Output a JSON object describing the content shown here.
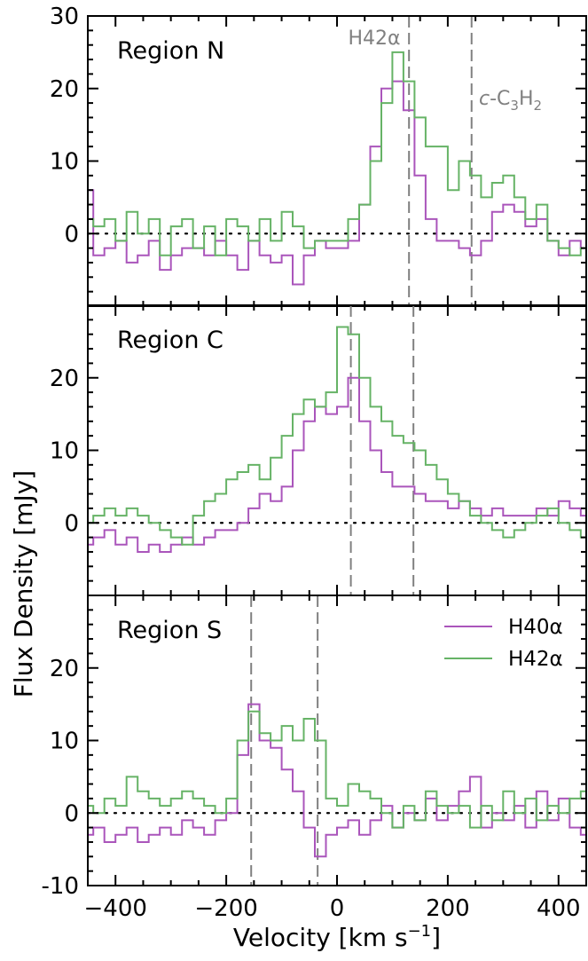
{
  "chart_data": {
    "type": "line",
    "drawstyle": "steps-mid",
    "xlabel_main": "Velocity [km s",
    "xlabel_sup": "−1",
    "xlabel_end": "]",
    "ylabel": "Flux Density [mJy]",
    "xlim": [
      -450,
      450
    ],
    "xticks": [
      -400,
      -200,
      0,
      200,
      400
    ],
    "xtick_labels": [
      "−400",
      "−200",
      "0",
      "200",
      "400"
    ],
    "colors": {
      "H40": "#aa55bb",
      "H42": "#66b366",
      "vline": "#808080"
    },
    "legend": {
      "placement": "upper-right",
      "panel": 2,
      "entries": [
        "H40α",
        "H42α"
      ]
    },
    "annotations": {
      "h42_label": "H42α",
      "c3h2_prefix": "c",
      "c3h2_rest": "-C",
      "c3h2_sub1": "3",
      "c3h2_mid": "H",
      "c3h2_sub2": "2"
    },
    "panels": [
      {
        "label": "Region N",
        "ylim": [
          -10,
          30
        ],
        "yticks": [
          0,
          10,
          20,
          30
        ],
        "ytick_labels": [
          "0",
          "10",
          "20",
          "30"
        ],
        "vlines": [
          130,
          243
        ],
        "series": [
          {
            "name": "H40α",
            "x": [
              -450,
              -430,
              -410,
              -390,
              -370,
              -350,
              -330,
              -310,
              -290,
              -270,
              -250,
              -230,
              -210,
              -190,
              -170,
              -150,
              -130,
              -110,
              -90,
              -70,
              -50,
              -30,
              -10,
              10,
              30,
              50,
              70,
              90,
              110,
              130,
              150,
              170,
              190,
              210,
              230,
              250,
              270,
              290,
              310,
              330,
              350,
              370,
              390,
              410,
              430,
              450
            ],
            "y": [
              6,
              -3,
              -2,
              -1,
              -4,
              -3,
              -1,
              -5,
              -3,
              -2,
              -2,
              -3,
              -1,
              -3,
              -5,
              -1,
              -3,
              -4,
              -3,
              -7,
              -3,
              -1,
              -2,
              -2,
              -1,
              4,
              12,
              20,
              21,
              17,
              8,
              2,
              -1,
              -1,
              -2,
              -3,
              -1,
              3,
              4,
              3,
              1,
              2,
              -1,
              -3,
              -1,
              -2
            ]
          },
          {
            "name": "H42α",
            "x": [
              -450,
              -430,
              -410,
              -390,
              -370,
              -350,
              -330,
              -310,
              -290,
              -270,
              -250,
              -230,
              -210,
              -190,
              -170,
              -150,
              -130,
              -110,
              -90,
              -70,
              -50,
              -30,
              -10,
              10,
              30,
              50,
              70,
              90,
              110,
              130,
              150,
              170,
              190,
              210,
              230,
              250,
              270,
              290,
              310,
              330,
              350,
              370,
              390,
              410,
              430,
              450
            ],
            "y": [
              2,
              1,
              2,
              -1,
              3,
              0,
              2,
              -3,
              1,
              2,
              -2,
              1,
              -3,
              2,
              1,
              -1,
              2,
              -1,
              3,
              1,
              -2,
              -1,
              -1,
              -1,
              2,
              4,
              10,
              18,
              25,
              21,
              16,
              12,
              12,
              6,
              10,
              8,
              5,
              7,
              8,
              5,
              2,
              4,
              -1,
              -2,
              -3,
              -2
            ]
          }
        ]
      },
      {
        "label": "Region C",
        "ylim": [
          -10,
          30
        ],
        "yticks": [
          0,
          10,
          20
        ],
        "ytick_labels": [
          "0",
          "10",
          "20"
        ],
        "vlines": [
          25,
          138
        ],
        "series": [
          {
            "name": "H40α",
            "x": [
              -450,
              -430,
              -410,
              -390,
              -370,
              -350,
              -330,
              -310,
              -290,
              -270,
              -250,
              -230,
              -210,
              -190,
              -170,
              -150,
              -130,
              -110,
              -90,
              -70,
              -50,
              -30,
              -10,
              10,
              30,
              50,
              70,
              90,
              110,
              130,
              150,
              170,
              190,
              210,
              230,
              250,
              270,
              290,
              310,
              330,
              350,
              370,
              390,
              410,
              430,
              450
            ],
            "y": [
              -3,
              -2,
              -1,
              -3,
              -2,
              -4,
              -3,
              -4,
              -3,
              -2,
              -3,
              -2,
              -1,
              -1,
              0,
              2,
              4,
              3,
              5,
              10,
              14,
              16,
              15,
              16,
              20,
              14,
              10,
              7,
              5,
              5,
              4,
              3,
              3,
              2,
              3,
              2,
              1,
              2,
              1,
              1,
              1,
              2,
              1,
              3,
              2,
              1
            ]
          },
          {
            "name": "H42α",
            "x": [
              -450,
              -430,
              -410,
              -390,
              -370,
              -350,
              -330,
              -310,
              -290,
              -270,
              -250,
              -230,
              -210,
              -190,
              -170,
              -150,
              -130,
              -110,
              -90,
              -70,
              -50,
              -30,
              -10,
              10,
              30,
              50,
              70,
              90,
              110,
              130,
              150,
              170,
              190,
              210,
              230,
              250,
              270,
              290,
              310,
              330,
              350,
              370,
              390,
              410,
              430,
              450
            ],
            "y": [
              0,
              1,
              2,
              1,
              2,
              1,
              0,
              -1,
              -2,
              -3,
              1,
              3,
              4,
              6,
              7,
              8,
              6,
              9,
              12,
              15,
              17,
              16,
              18,
              27,
              26,
              20,
              16,
              14,
              12,
              11,
              10,
              8,
              6,
              4,
              3,
              1,
              0,
              -1,
              -2,
              -1,
              0,
              1,
              2,
              0,
              -1,
              -2
            ]
          }
        ]
      },
      {
        "label": "Region S",
        "ylim": [
          -10,
          30
        ],
        "yticks": [
          -10,
          0,
          10,
          20
        ],
        "ytick_labels": [
          "-10",
          "0",
          "10",
          "20"
        ],
        "vlines": [
          -155,
          -35
        ],
        "series": [
          {
            "name": "H40α",
            "x": [
              -450,
              -430,
              -410,
              -390,
              -370,
              -350,
              -330,
              -310,
              -290,
              -270,
              -250,
              -230,
              -210,
              -190,
              -170,
              -150,
              -130,
              -110,
              -90,
              -70,
              -50,
              -30,
              -10,
              10,
              30,
              50,
              70,
              90,
              110,
              130,
              150,
              170,
              190,
              210,
              230,
              250,
              270,
              290,
              310,
              330,
              350,
              370,
              390,
              410,
              430,
              450
            ],
            "y": [
              -3,
              -2,
              -4,
              -3,
              -2,
              -4,
              -3,
              -2,
              -3,
              -1,
              -2,
              -3,
              -1,
              0,
              8,
              15,
              10,
              9,
              6,
              3,
              -2,
              -6,
              -3,
              -2,
              -1,
              -3,
              -1,
              1,
              -2,
              0,
              -1,
              2,
              -1,
              1,
              3,
              5,
              -2,
              0,
              -1,
              1,
              -2,
              3,
              -1,
              2,
              -2,
              -3
            ]
          },
          {
            "name": "H42α",
            "x": [
              -450,
              -430,
              -410,
              -390,
              -370,
              -350,
              -330,
              -310,
              -290,
              -270,
              -250,
              -230,
              -210,
              -190,
              -170,
              -150,
              -130,
              -110,
              -90,
              -70,
              -50,
              -30,
              -10,
              10,
              30,
              50,
              70,
              90,
              110,
              130,
              150,
              170,
              190,
              210,
              230,
              250,
              270,
              290,
              310,
              330,
              350,
              370,
              390,
              410,
              430,
              450
            ],
            "y": [
              1,
              0,
              2,
              1,
              5,
              3,
              2,
              1,
              2,
              3,
              2,
              1,
              0,
              2,
              10,
              14,
              11,
              10,
              12,
              10,
              13,
              10,
              2,
              1,
              4,
              3,
              2,
              0,
              -2,
              1,
              -1,
              3,
              1,
              0,
              1,
              -2,
              1,
              -1,
              3,
              0,
              2,
              -1,
              1,
              0,
              2,
              3
            ]
          }
        ]
      }
    ]
  }
}
